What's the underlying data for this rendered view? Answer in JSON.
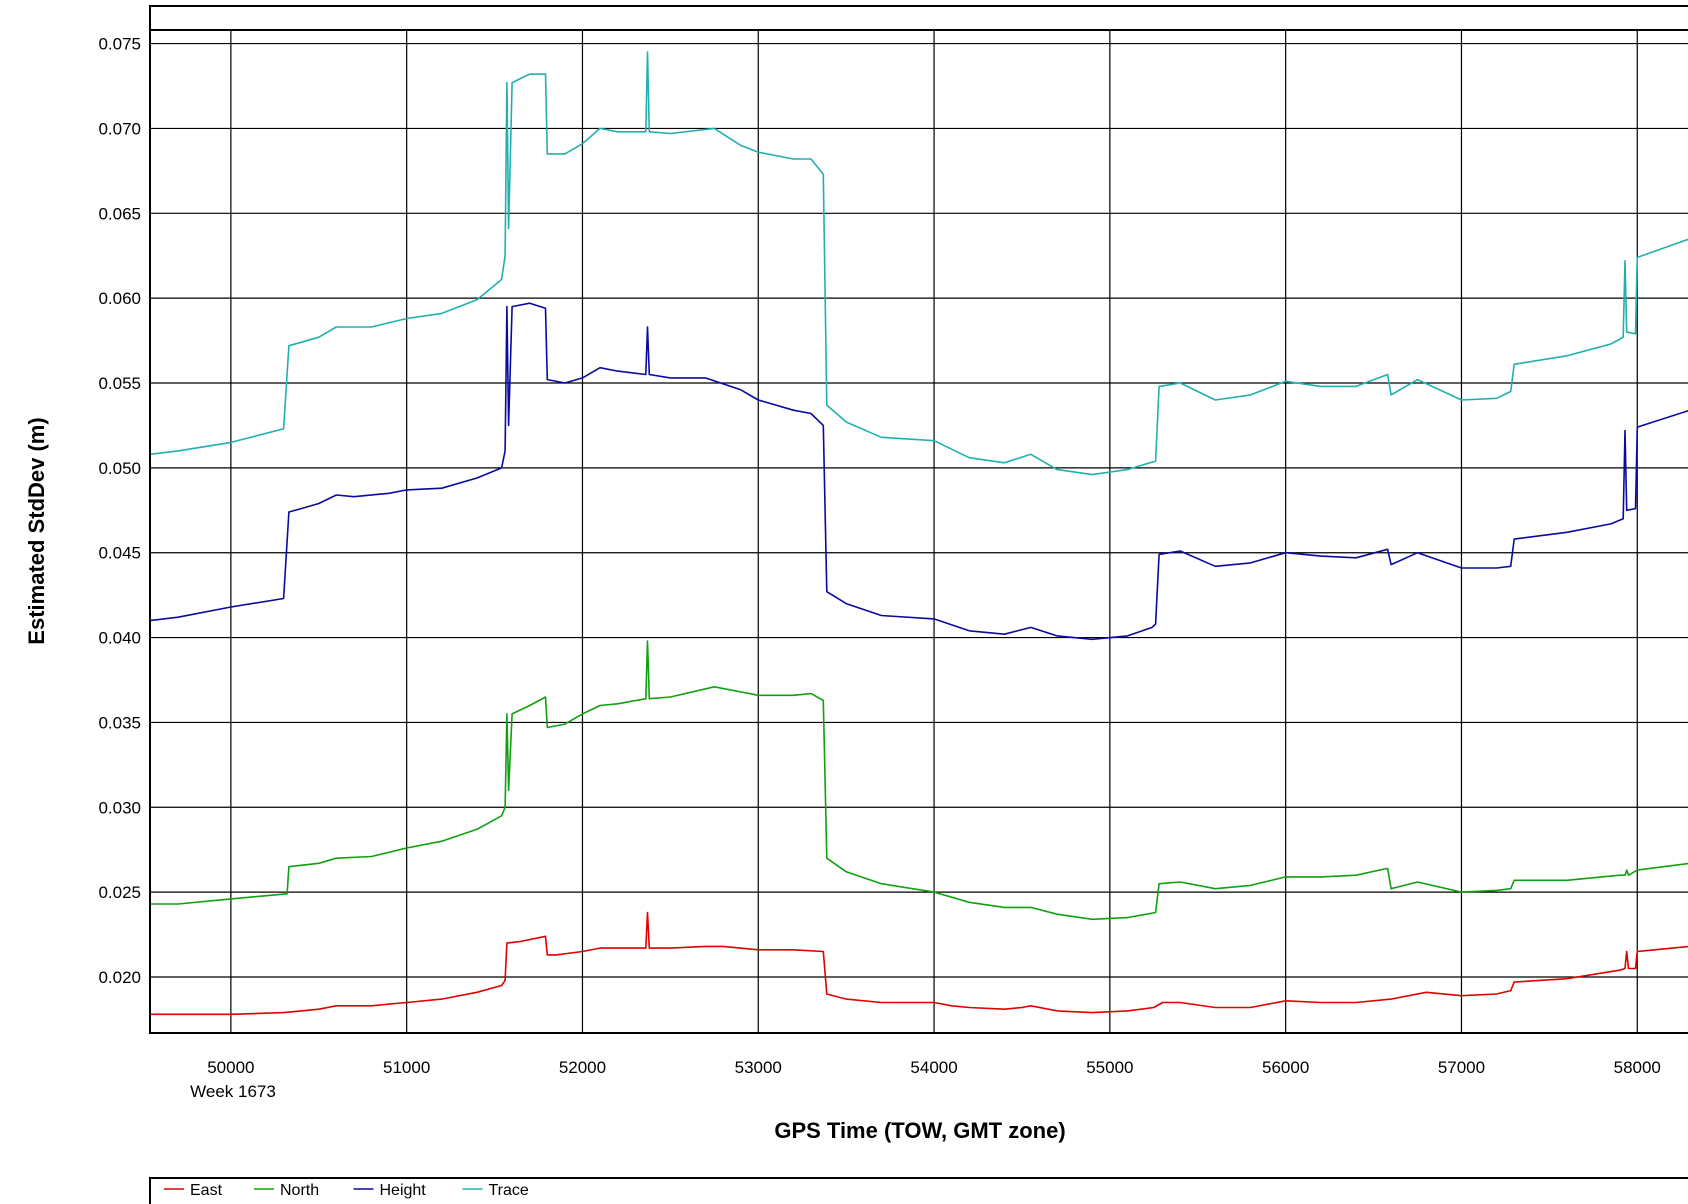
{
  "chart_data": {
    "type": "line",
    "xlabel": "GPS Time (TOW, GMT zone)",
    "ylabel": "Estimated StdDev (m)",
    "x_subtitle": "Week 1673",
    "xlim": [
      49540,
      58300
    ],
    "ylim": [
      0.0167,
      0.0758
    ],
    "x_ticks": [
      50000,
      51000,
      52000,
      53000,
      54000,
      55000,
      56000,
      57000,
      58000
    ],
    "y_ticks": [
      0.02,
      0.025,
      0.03,
      0.035,
      0.04,
      0.045,
      0.05,
      0.055,
      0.06,
      0.065,
      0.07,
      0.075
    ],
    "y_tick_labels": [
      "0.020",
      "0.025",
      "0.030",
      "0.035",
      "0.040",
      "0.045",
      "0.050",
      "0.055",
      "0.060",
      "0.065",
      "0.070",
      "0.075"
    ],
    "grid": true,
    "legend_position": "bottom",
    "series": [
      {
        "name": "East",
        "color": "#e00000",
        "points": [
          [
            49540,
            0.0178
          ],
          [
            49700,
            0.0178
          ],
          [
            50000,
            0.0178
          ],
          [
            50300,
            0.0179
          ],
          [
            50400,
            0.018
          ],
          [
            50500,
            0.0181
          ],
          [
            50600,
            0.0183
          ],
          [
            50700,
            0.0183
          ],
          [
            50800,
            0.0183
          ],
          [
            50900,
            0.0184
          ],
          [
            51000,
            0.0185
          ],
          [
            51200,
            0.0187
          ],
          [
            51400,
            0.0191
          ],
          [
            51540,
            0.0195
          ],
          [
            51560,
            0.0198
          ],
          [
            51570,
            0.022
          ],
          [
            51650,
            0.0221
          ],
          [
            51790,
            0.0224
          ],
          [
            51800,
            0.0213
          ],
          [
            51850,
            0.0213
          ],
          [
            52000,
            0.0215
          ],
          [
            52100,
            0.0217
          ],
          [
            52200,
            0.0217
          ],
          [
            52360,
            0.0217
          ],
          [
            52370,
            0.0238
          ],
          [
            52380,
            0.0217
          ],
          [
            52500,
            0.0217
          ],
          [
            52700,
            0.0218
          ],
          [
            52800,
            0.0218
          ],
          [
            53000,
            0.0216
          ],
          [
            53200,
            0.0216
          ],
          [
            53370,
            0.0215
          ],
          [
            53390,
            0.019
          ],
          [
            53500,
            0.0187
          ],
          [
            53700,
            0.0185
          ],
          [
            54000,
            0.0185
          ],
          [
            54100,
            0.0183
          ],
          [
            54200,
            0.0182
          ],
          [
            54400,
            0.0181
          ],
          [
            54500,
            0.0182
          ],
          [
            54550,
            0.0183
          ],
          [
            54700,
            0.018
          ],
          [
            54900,
            0.0179
          ],
          [
            55100,
            0.018
          ],
          [
            55250,
            0.0182
          ],
          [
            55300,
            0.0185
          ],
          [
            55400,
            0.0185
          ],
          [
            55600,
            0.0182
          ],
          [
            55800,
            0.0182
          ],
          [
            56000,
            0.0186
          ],
          [
            56200,
            0.0185
          ],
          [
            56400,
            0.0185
          ],
          [
            56600,
            0.0187
          ],
          [
            56800,
            0.0191
          ],
          [
            57000,
            0.0189
          ],
          [
            57200,
            0.019
          ],
          [
            57280,
            0.0192
          ],
          [
            57300,
            0.0197
          ],
          [
            57600,
            0.0199
          ],
          [
            57900,
            0.0204
          ],
          [
            57930,
            0.0205
          ],
          [
            57940,
            0.0215
          ],
          [
            57950,
            0.0205
          ],
          [
            57990,
            0.0205
          ],
          [
            58000,
            0.0215
          ],
          [
            58300,
            0.0218
          ]
        ]
      },
      {
        "name": "North",
        "color": "#10a010",
        "points": [
          [
            49540,
            0.0243
          ],
          [
            49700,
            0.0243
          ],
          [
            50000,
            0.0246
          ],
          [
            50320,
            0.0249
          ],
          [
            50330,
            0.0265
          ],
          [
            50500,
            0.0267
          ],
          [
            50600,
            0.027
          ],
          [
            50800,
            0.0271
          ],
          [
            51000,
            0.0276
          ],
          [
            51200,
            0.028
          ],
          [
            51400,
            0.0287
          ],
          [
            51540,
            0.0295
          ],
          [
            51560,
            0.03
          ],
          [
            51570,
            0.0355
          ],
          [
            51580,
            0.031
          ],
          [
            51600,
            0.0355
          ],
          [
            51700,
            0.036
          ],
          [
            51790,
            0.0365
          ],
          [
            51800,
            0.0347
          ],
          [
            51900,
            0.0349
          ],
          [
            52000,
            0.0355
          ],
          [
            52100,
            0.036
          ],
          [
            52200,
            0.0361
          ],
          [
            52360,
            0.0364
          ],
          [
            52370,
            0.0398
          ],
          [
            52380,
            0.0364
          ],
          [
            52500,
            0.0365
          ],
          [
            52750,
            0.0371
          ],
          [
            52900,
            0.0368
          ],
          [
            53000,
            0.0366
          ],
          [
            53200,
            0.0366
          ],
          [
            53300,
            0.0367
          ],
          [
            53370,
            0.0363
          ],
          [
            53390,
            0.027
          ],
          [
            53500,
            0.0262
          ],
          [
            53700,
            0.0255
          ],
          [
            54000,
            0.025
          ],
          [
            54200,
            0.0244
          ],
          [
            54400,
            0.0241
          ],
          [
            54550,
            0.0241
          ],
          [
            54700,
            0.0237
          ],
          [
            54900,
            0.0234
          ],
          [
            55100,
            0.0235
          ],
          [
            55260,
            0.0238
          ],
          [
            55280,
            0.0255
          ],
          [
            55400,
            0.0256
          ],
          [
            55600,
            0.0252
          ],
          [
            55800,
            0.0254
          ],
          [
            56000,
            0.0259
          ],
          [
            56200,
            0.0259
          ],
          [
            56400,
            0.026
          ],
          [
            56580,
            0.0264
          ],
          [
            56600,
            0.0252
          ],
          [
            56750,
            0.0256
          ],
          [
            57000,
            0.025
          ],
          [
            57200,
            0.0251
          ],
          [
            57280,
            0.0252
          ],
          [
            57300,
            0.0257
          ],
          [
            57600,
            0.0257
          ],
          [
            57900,
            0.026
          ],
          [
            57930,
            0.026
          ],
          [
            57940,
            0.0263
          ],
          [
            57950,
            0.026
          ],
          [
            58000,
            0.0263
          ],
          [
            58300,
            0.0267
          ]
        ]
      },
      {
        "name": "Height",
        "color": "#0a0aa0",
        "points": [
          [
            49540,
            0.041
          ],
          [
            49700,
            0.0412
          ],
          [
            50000,
            0.0418
          ],
          [
            50300,
            0.0423
          ],
          [
            50330,
            0.0474
          ],
          [
            50400,
            0.0476
          ],
          [
            50500,
            0.0479
          ],
          [
            50600,
            0.0484
          ],
          [
            50700,
            0.0483
          ],
          [
            50900,
            0.0485
          ],
          [
            51000,
            0.0487
          ],
          [
            51200,
            0.0488
          ],
          [
            51400,
            0.0494
          ],
          [
            51540,
            0.05
          ],
          [
            51560,
            0.051
          ],
          [
            51570,
            0.0595
          ],
          [
            51580,
            0.0525
          ],
          [
            51600,
            0.0595
          ],
          [
            51700,
            0.0597
          ],
          [
            51790,
            0.0594
          ],
          [
            51800,
            0.0552
          ],
          [
            51900,
            0.055
          ],
          [
            52000,
            0.0553
          ],
          [
            52100,
            0.0559
          ],
          [
            52200,
            0.0557
          ],
          [
            52360,
            0.0555
          ],
          [
            52370,
            0.0583
          ],
          [
            52380,
            0.0555
          ],
          [
            52500,
            0.0553
          ],
          [
            52700,
            0.0553
          ],
          [
            52900,
            0.0546
          ],
          [
            53000,
            0.054
          ],
          [
            53200,
            0.0534
          ],
          [
            53300,
            0.0532
          ],
          [
            53370,
            0.0525
          ],
          [
            53390,
            0.0427
          ],
          [
            53500,
            0.042
          ],
          [
            53700,
            0.0413
          ],
          [
            54000,
            0.0411
          ],
          [
            54200,
            0.0404
          ],
          [
            54400,
            0.0402
          ],
          [
            54550,
            0.0406
          ],
          [
            54700,
            0.0401
          ],
          [
            54900,
            0.0399
          ],
          [
            55100,
            0.0401
          ],
          [
            55240,
            0.0406
          ],
          [
            55260,
            0.0408
          ],
          [
            55280,
            0.0449
          ],
          [
            55400,
            0.0451
          ],
          [
            55600,
            0.0442
          ],
          [
            55800,
            0.0444
          ],
          [
            56000,
            0.045
          ],
          [
            56200,
            0.0448
          ],
          [
            56400,
            0.0447
          ],
          [
            56580,
            0.0452
          ],
          [
            56600,
            0.0443
          ],
          [
            56750,
            0.045
          ],
          [
            57000,
            0.0441
          ],
          [
            57200,
            0.0441
          ],
          [
            57280,
            0.0442
          ],
          [
            57300,
            0.0458
          ],
          [
            57600,
            0.0462
          ],
          [
            57850,
            0.0467
          ],
          [
            57920,
            0.047
          ],
          [
            57930,
            0.0522
          ],
          [
            57940,
            0.0475
          ],
          [
            57990,
            0.0476
          ],
          [
            58000,
            0.0524
          ],
          [
            58300,
            0.0534
          ]
        ]
      },
      {
        "name": "Trace",
        "color": "#20b0b0",
        "points": [
          [
            49540,
            0.0508
          ],
          [
            49700,
            0.051
          ],
          [
            50000,
            0.0515
          ],
          [
            50300,
            0.0523
          ],
          [
            50330,
            0.0572
          ],
          [
            50400,
            0.0574
          ],
          [
            50500,
            0.0577
          ],
          [
            50600,
            0.0583
          ],
          [
            50800,
            0.0583
          ],
          [
            51000,
            0.0588
          ],
          [
            51200,
            0.0591
          ],
          [
            51400,
            0.0599
          ],
          [
            51540,
            0.0611
          ],
          [
            51560,
            0.0625
          ],
          [
            51570,
            0.0727
          ],
          [
            51580,
            0.0641
          ],
          [
            51600,
            0.0727
          ],
          [
            51700,
            0.0732
          ],
          [
            51790,
            0.0732
          ],
          [
            51800,
            0.0685
          ],
          [
            51900,
            0.0685
          ],
          [
            52000,
            0.0691
          ],
          [
            52100,
            0.07
          ],
          [
            52200,
            0.0698
          ],
          [
            52360,
            0.0698
          ],
          [
            52370,
            0.0745
          ],
          [
            52380,
            0.0698
          ],
          [
            52500,
            0.0697
          ],
          [
            52750,
            0.07
          ],
          [
            52900,
            0.069
          ],
          [
            53000,
            0.0686
          ],
          [
            53200,
            0.0682
          ],
          [
            53300,
            0.0682
          ],
          [
            53370,
            0.0673
          ],
          [
            53390,
            0.0537
          ],
          [
            53500,
            0.0527
          ],
          [
            53700,
            0.0518
          ],
          [
            54000,
            0.0516
          ],
          [
            54200,
            0.0506
          ],
          [
            54400,
            0.0503
          ],
          [
            54550,
            0.0508
          ],
          [
            54700,
            0.0499
          ],
          [
            54900,
            0.0496
          ],
          [
            55100,
            0.0499
          ],
          [
            55260,
            0.0504
          ],
          [
            55280,
            0.0548
          ],
          [
            55400,
            0.055
          ],
          [
            55600,
            0.054
          ],
          [
            55800,
            0.0543
          ],
          [
            56000,
            0.0551
          ],
          [
            56200,
            0.0548
          ],
          [
            56400,
            0.0548
          ],
          [
            56580,
            0.0555
          ],
          [
            56600,
            0.0543
          ],
          [
            56750,
            0.0552
          ],
          [
            57000,
            0.054
          ],
          [
            57200,
            0.0541
          ],
          [
            57280,
            0.0545
          ],
          [
            57300,
            0.0561
          ],
          [
            57600,
            0.0566
          ],
          [
            57850,
            0.0573
          ],
          [
            57920,
            0.0577
          ],
          [
            57930,
            0.0622
          ],
          [
            57940,
            0.058
          ],
          [
            57990,
            0.0579
          ],
          [
            58000,
            0.0624
          ],
          [
            58300,
            0.0635
          ]
        ]
      }
    ]
  }
}
